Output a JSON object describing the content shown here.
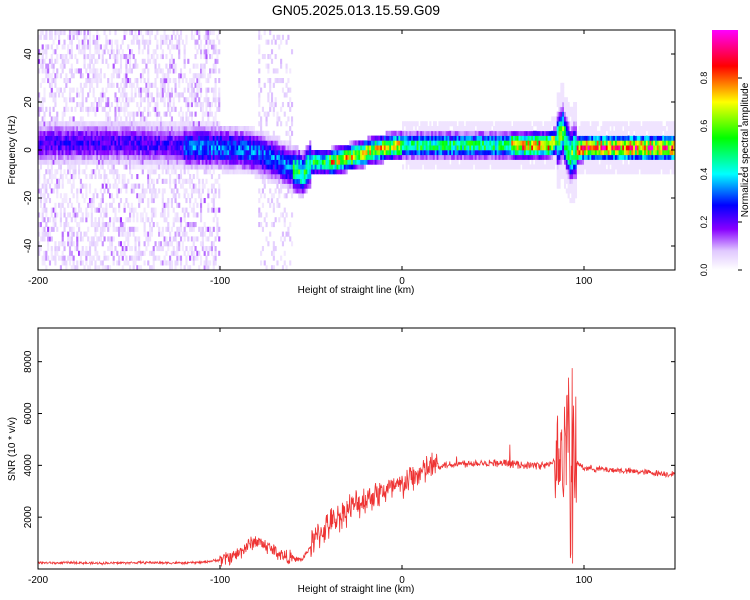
{
  "title": "GN05.2025.013.15.59.G09",
  "chart_data": [
    {
      "type": "heatmap",
      "xlabel": "Height of straight line (km)",
      "ylabel": "Frequency (Hz)",
      "xlim": [
        -200,
        150
      ],
      "ylim": [
        -50,
        50
      ],
      "xticks": [
        -200,
        -100,
        0,
        100
      ],
      "yticks": [
        -40,
        -20,
        0,
        20,
        40
      ],
      "grid": false,
      "colorbar": {
        "label": "Normalized spectral amplitude",
        "range": [
          0,
          1
        ],
        "ticks": [
          "0.0",
          "0.2",
          "0.4",
          "0.6",
          "0.8"
        ],
        "colors": [
          "#ffffff",
          "#8800ff",
          "#0000ff",
          "#00ffff",
          "#00ff00",
          "#ffff00",
          "#ff0000",
          "#ff00ff"
        ]
      },
      "ridge": {
        "x": [
          -150,
          -125,
          -100,
          -85,
          -70,
          -60,
          -55,
          -50,
          -40,
          -30,
          -20,
          -10,
          0,
          20,
          50,
          80,
          85,
          88,
          90,
          92,
          95,
          100,
          150
        ],
        "y": [
          3,
          2,
          1,
          0,
          -4,
          -8,
          -10,
          -5,
          -5,
          -3,
          -1,
          1,
          2,
          2,
          2,
          2,
          4,
          8,
          2,
          -2,
          0,
          1,
          1
        ]
      }
    },
    {
      "type": "line",
      "xlabel": "Height of straight line (km)",
      "ylabel": "SNR (10 * v/v)",
      "xlim": [
        -200,
        150
      ],
      "ylim": [
        0,
        9300
      ],
      "xticks": [
        -200,
        -100,
        0,
        100
      ],
      "yticks": [
        2000,
        4000,
        6000,
        8000
      ],
      "grid": false,
      "color": "#ee3333",
      "series": [
        {
          "x": [
            -200,
            -190,
            -180,
            -170,
            -160,
            -150,
            -140,
            -130,
            -120,
            -110,
            -100,
            -95,
            -90,
            -85,
            -80,
            -75,
            -70,
            -65,
            -60,
            -55,
            -50,
            -45,
            -40,
            -35,
            -30,
            -25,
            -20,
            -15,
            -10,
            -5,
            0,
            5,
            10,
            15,
            20,
            30,
            40,
            50,
            60,
            70,
            80,
            85,
            88,
            90,
            92,
            94,
            96,
            100,
            110,
            120,
            130,
            140,
            150
          ],
          "values": [
            250,
            230,
            250,
            220,
            230,
            240,
            250,
            240,
            230,
            260,
            350,
            450,
            600,
            900,
            1100,
            900,
            700,
            500,
            400,
            350,
            900,
            1400,
            1700,
            2000,
            2300,
            2500,
            2700,
            2900,
            3000,
            3100,
            3200,
            3500,
            3700,
            3900,
            4000,
            4050,
            4100,
            4100,
            4050,
            4000,
            4000,
            4200,
            4400,
            5000,
            5500,
            4000,
            4100,
            3900,
            3850,
            3800,
            3750,
            3700,
            3650
          ]
        }
      ]
    }
  ]
}
